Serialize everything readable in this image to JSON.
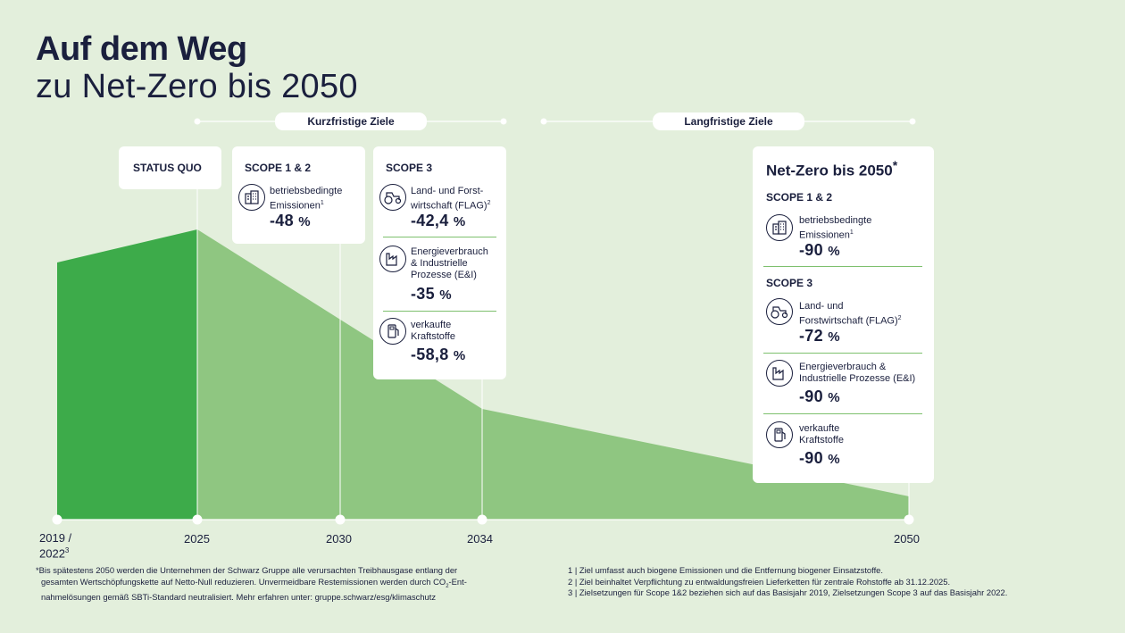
{
  "title": {
    "line1": "Auf dem Weg",
    "line2": "zu Net-Zero bis 2050"
  },
  "timeline": {
    "short_label": "Kurzfristige Ziele",
    "long_label": "Langfristige Ziele"
  },
  "status_quo": "STATUS QUO",
  "scope12_card": {
    "heading": "SCOPE 1 & 2",
    "item": {
      "label1": "betriebsbedingte",
      "label2": "Emissionen",
      "sup": "1",
      "value": "-48",
      "unit": "%"
    }
  },
  "scope3_card": {
    "heading": "SCOPE 3",
    "items": [
      {
        "label1": "Land- und Forst-",
        "label2": "wirtschaft (FLAG)",
        "sup": "2",
        "value": "-42,4",
        "unit": "%"
      },
      {
        "label1": "Energieverbrauch",
        "label2": "& Industrielle",
        "label3": "Prozesse (E&I)",
        "value": "-35",
        "unit": "%"
      },
      {
        "label1": "verkaufte",
        "label2": "Kraftstoffe",
        "value": "-58,8",
        "unit": "%"
      }
    ]
  },
  "netzero_card": {
    "title": "Net-Zero bis 2050",
    "title_mark": "*",
    "scope12_heading": "SCOPE 1 & 2",
    "scope12_item": {
      "label1": "betriebsbedingte",
      "label2": "Emissionen",
      "sup": "1",
      "value": "-90",
      "unit": "%"
    },
    "scope3_heading": "SCOPE 3",
    "scope3_items": [
      {
        "label1": "Land- und",
        "label2": "Forstwirtschaft (FLAG)",
        "sup": "2",
        "value": "-72",
        "unit": "%"
      },
      {
        "label1": "Energieverbrauch &",
        "label2": "Industrielle Prozesse (E&I)",
        "value": "-90",
        "unit": "%"
      },
      {
        "label1": "verkaufte",
        "label2": "Kraftstoffe",
        "value": "-90",
        "unit": "%"
      }
    ]
  },
  "axis": {
    "y2019a": "2019 /",
    "y2019b": "2022",
    "y2019sup": "3",
    "y2025": "2025",
    "y2030": "2030",
    "y2034": "2034",
    "y2050": "2050"
  },
  "footnotes": {
    "left1": "*Bis spätestens 2050 werden die Unternehmen der Schwarz Gruppe alle verursachten Treibhausgase entlang der",
    "left2a": "gesamten Wertschöpfungskette auf Netto-Null reduzieren. Unvermeidbare Restemissionen werden durch CO",
    "left2sub": "2",
    "left2b": "-Ent-",
    "left3": "nahmelösungen gemäß SBTi-Standard neutralisiert. Mehr erfahren unter: gruppe.schwarz/esg/klimaschutz",
    "right1": "1 | Ziel umfasst auch biogene Emissionen und die Entfernung biogener Einsatzstoffe.",
    "right2": "2 | Ziel beinhaltet Verpflichtung zu entwaldungsfreien Lieferketten für zentrale Rohstoffe ab 31.12.2025.",
    "right3": "3 | Zielsetzungen für Scope 1&2 beziehen sich auf das Basisjahr 2019, Zielsetzungen Scope 3 auf das Basisjahr 2022."
  },
  "icons": {
    "building": "building-icon",
    "tractor": "tractor-icon",
    "factory": "factory-icon",
    "fuel": "fuel-pump-icon"
  },
  "colors": {
    "background": "#e3efdc",
    "dark_green": "#3dab4a",
    "light_green": "#8fc681",
    "navy": "#1a1f3d"
  }
}
